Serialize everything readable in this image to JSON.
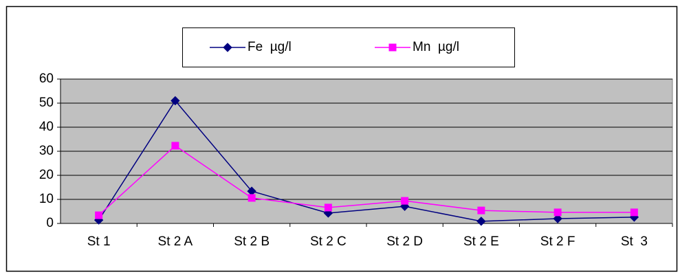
{
  "chart_data": {
    "type": "line",
    "categories": [
      "St 1",
      "St 2 A",
      "St 2 B",
      "St 2 C",
      "St 2 D",
      "St 2 E",
      "St 2 F",
      "St  3"
    ],
    "series": [
      {
        "name": "Fe  µg/l",
        "color": "#000080",
        "marker": "diamond",
        "values": [
          1.4,
          51,
          13.4,
          4.3,
          7.1,
          0.9,
          2,
          2.6
        ]
      },
      {
        "name": "Mn  µg/l",
        "color": "#ff00ff",
        "marker": "square",
        "values": [
          3.4,
          32.3,
          10.6,
          6.6,
          9.4,
          5.4,
          4.6,
          4.6
        ]
      }
    ],
    "ylim": [
      0,
      60
    ],
    "yticks": [
      0,
      10,
      20,
      30,
      40,
      50,
      60
    ],
    "grid": true,
    "legend": "top"
  }
}
